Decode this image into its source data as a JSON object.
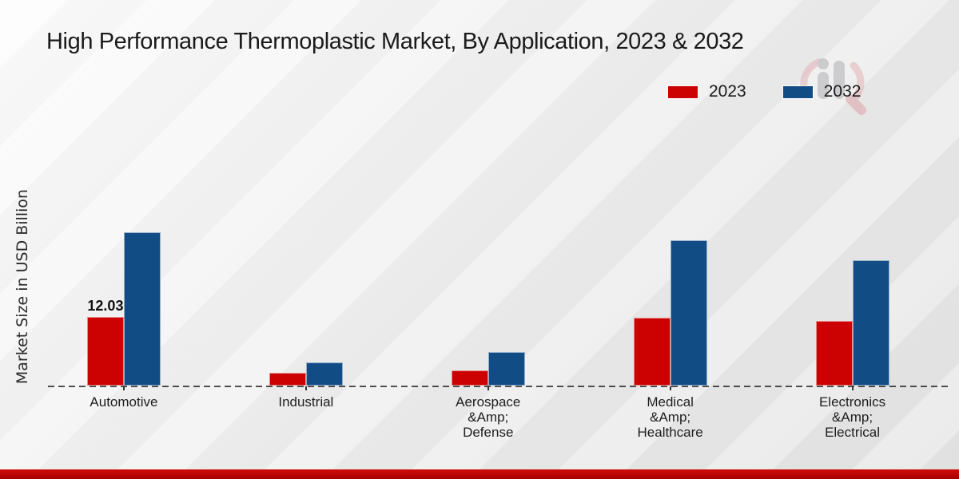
{
  "page": {
    "title": "High Performance Thermoplastic Market, By Application, 2023 & 2032"
  },
  "chart_data": {
    "type": "bar",
    "title": "High Performance Thermoplastic Market, By Application, 2023 & 2032",
    "xlabel": "",
    "ylabel": "Market Size in USD Billion",
    "legend_position": "top-right",
    "grid": false,
    "baseline_style": "dashed",
    "ylim": [
      0,
      30
    ],
    "categories": [
      "Automotive",
      "Industrial",
      "Aerospace\n&Amp;\nDefense",
      "Medical\n&Amp;\nHealthcare",
      "Electronics\n&Amp;\nElectrical"
    ],
    "series": [
      {
        "name": "2023",
        "color": "#cc0202",
        "values": [
          12.03,
          2.3,
          2.7,
          11.95,
          11.3
        ]
      },
      {
        "name": "2032",
        "color": "#114c85",
        "values": [
          26.8,
          4.1,
          5.9,
          25.4,
          21.9
        ]
      }
    ],
    "bar_labels": [
      {
        "series_index": 0,
        "category_index": 0,
        "text": "12.03"
      }
    ],
    "colors": {
      "label_text": "#111111",
      "baseline": "#1a1a1a",
      "footer_band": "#b40404"
    },
    "watermark": "bar-chart-magnifier-logo"
  }
}
